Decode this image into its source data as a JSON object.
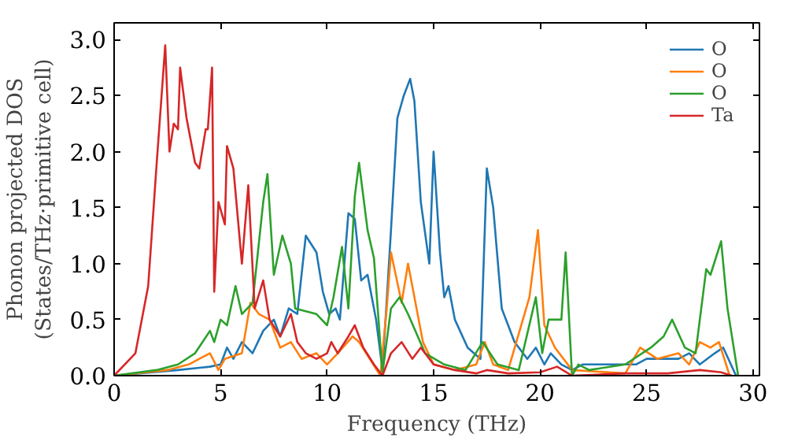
{
  "chart_data": {
    "type": "line",
    "xlabel": "Frequency (THz)",
    "ylabel": "Phonon projected DOS\n(States/THz·primitive cell)",
    "xlim": [
      0,
      30.3
    ],
    "ylim": [
      0,
      3.15
    ],
    "xticks": [
      0,
      5,
      10,
      15,
      20,
      25,
      30
    ],
    "yticks": [
      {
        "value": 0,
        "label": "0.0"
      },
      {
        "value": 0.5,
        "label": "0.5"
      },
      {
        "value": 1,
        "label": "1.0"
      },
      {
        "value": 1.5,
        "label": "1.5"
      },
      {
        "value": 2,
        "label": "2.0"
      },
      {
        "value": 2.5,
        "label": "2.5"
      },
      {
        "value": 3,
        "label": "3.0"
      }
    ],
    "legend": "top right",
    "grid": false,
    "series": [
      {
        "name": "O",
        "color": "#1f77b4",
        "x": [
          0,
          3,
          4.5,
          5,
          5.3,
          5.6,
          6,
          6.5,
          7,
          7.5,
          7.8,
          8.2,
          8.6,
          9.0,
          9.5,
          9.8,
          10.1,
          10.4,
          10.6,
          11,
          11.3,
          11.6,
          11.9,
          12.3,
          12.6,
          13.0,
          13.3,
          13.6,
          13.9,
          14.1,
          14.4,
          14.8,
          15.0,
          15.3,
          15.5,
          15.7,
          16.0,
          16.6,
          17.2,
          17.5,
          17.8,
          18.2,
          18.8,
          19.4,
          19.8,
          20.2,
          20.5,
          21.0,
          21.5,
          22,
          24.5,
          25,
          26.5,
          27.0,
          27.5,
          28.2,
          28.6,
          29.2
        ],
        "values": [
          0,
          0.05,
          0.08,
          0.1,
          0.25,
          0.15,
          0.3,
          0.2,
          0.4,
          0.5,
          0.35,
          0.6,
          0.55,
          1.25,
          1.1,
          0.75,
          0.55,
          0.6,
          0.5,
          1.45,
          1.4,
          0.85,
          0.9,
          0.5,
          0.05,
          1.3,
          2.3,
          2.5,
          2.65,
          2.45,
          1.55,
          1.0,
          2.0,
          1.1,
          0.7,
          0.8,
          0.5,
          0.25,
          0.15,
          1.85,
          1.5,
          0.6,
          0.3,
          0.15,
          0.25,
          0.1,
          0.2,
          0.1,
          0.05,
          0.1,
          0.1,
          0.15,
          0.15,
          0.2,
          0.1,
          0.2,
          0.25,
          0
        ]
      },
      {
        "name": "O",
        "color": "#ff7f0e",
        "x": [
          0,
          2.5,
          3.5,
          4.5,
          4.9,
          5.2,
          6,
          6.4,
          6.8,
          7.3,
          7.8,
          8.3,
          8.8,
          9.5,
          10,
          10.5,
          11.2,
          11.5,
          12,
          12.5,
          12.8,
          13.0,
          13.5,
          13.8,
          14.2,
          14.5,
          15,
          16,
          17,
          17.4,
          17.8,
          18.5,
          19.5,
          19.9,
          20.2,
          20.7,
          21.5,
          24,
          24.7,
          25.5,
          26.5,
          27,
          27.5,
          28,
          28.4,
          28.9
        ],
        "values": [
          0,
          0.05,
          0.1,
          0.2,
          0.05,
          0.15,
          0.2,
          0.65,
          0.55,
          0.5,
          0.25,
          0.3,
          0.15,
          0.2,
          0.1,
          0.2,
          0.35,
          0.3,
          0.15,
          0,
          0.6,
          1.1,
          0.65,
          1.0,
          0.6,
          0.3,
          0.1,
          0.05,
          0.1,
          0.3,
          0.1,
          0.05,
          0.7,
          1.3,
          0.45,
          0.25,
          0.05,
          0.02,
          0.25,
          0.15,
          0.2,
          0.1,
          0.3,
          0.25,
          0.3,
          0
        ]
      },
      {
        "name": "O",
        "color": "#2ca02c",
        "x": [
          0,
          2,
          3,
          3.8,
          4.5,
          4.7,
          5.0,
          5.3,
          5.7,
          6.0,
          6.5,
          7.0,
          7.2,
          7.5,
          7.9,
          8.3,
          8.5,
          9.5,
          10.0,
          10.3,
          10.7,
          11,
          11.3,
          11.5,
          11.9,
          12.2,
          12.6,
          13.0,
          13.4,
          13.8,
          14.6,
          15.5,
          16.5,
          17.3,
          18,
          19,
          19.8,
          20.1,
          20.4,
          21.0,
          21.2,
          21.5,
          21.8,
          22.3,
          24,
          25.2,
          25.8,
          26.2,
          26.8,
          27.3,
          27.8,
          28.0,
          28.5,
          28.8,
          29.3
        ],
        "values": [
          0,
          0.05,
          0.1,
          0.2,
          0.4,
          0.3,
          0.5,
          0.45,
          0.8,
          0.55,
          0.65,
          1.55,
          1.8,
          0.9,
          1.25,
          1.0,
          0.6,
          0.55,
          0.45,
          0.7,
          1.15,
          0.6,
          1.6,
          1.9,
          1.3,
          1.05,
          0.02,
          0.6,
          0.7,
          0.55,
          0.2,
          0.1,
          0.05,
          0.3,
          0.1,
          0.05,
          0.7,
          0.2,
          0.5,
          0.5,
          1.1,
          0,
          0.1,
          0.05,
          0.1,
          0.25,
          0.35,
          0.5,
          0.25,
          0.2,
          0.95,
          0.9,
          1.2,
          0.6,
          0
        ]
      },
      {
        "name": "Ta",
        "color": "#d62728",
        "x": [
          0,
          1,
          1.6,
          2.0,
          2.4,
          2.6,
          2.8,
          3.0,
          3.1,
          3.4,
          3.8,
          4.0,
          4.3,
          4.4,
          4.6,
          4.7,
          4.9,
          5.2,
          5.3,
          5.6,
          6.0,
          6.3,
          6.6,
          7.0,
          7.3,
          7.8,
          8.3,
          8.6,
          9.0,
          9.5,
          10.0,
          10.2,
          10.5,
          11.0,
          11.3,
          11.7,
          12.2,
          12.6,
          13.0,
          13.5,
          14.0,
          14.4,
          15.0,
          16,
          17,
          17.5,
          18.5,
          20,
          20.8,
          21.5,
          24,
          26,
          27.5,
          28.5,
          29
        ],
        "values": [
          0,
          0.2,
          0.8,
          1.9,
          2.95,
          2.0,
          2.25,
          2.2,
          2.75,
          2.3,
          1.9,
          1.85,
          2.2,
          2.2,
          2.75,
          0.75,
          1.55,
          1.35,
          2.05,
          1.85,
          1.0,
          1.7,
          0.6,
          0.85,
          0.5,
          0.35,
          0.55,
          0.3,
          0.2,
          0.15,
          0.2,
          0.3,
          0.2,
          0.35,
          0.45,
          0.25,
          0.1,
          0,
          0.2,
          0.3,
          0.15,
          0.25,
          0.1,
          0.05,
          0.02,
          0.05,
          0.02,
          0.03,
          0.08,
          0,
          0.02,
          0.02,
          0.05,
          0.03,
          0
        ]
      }
    ]
  }
}
